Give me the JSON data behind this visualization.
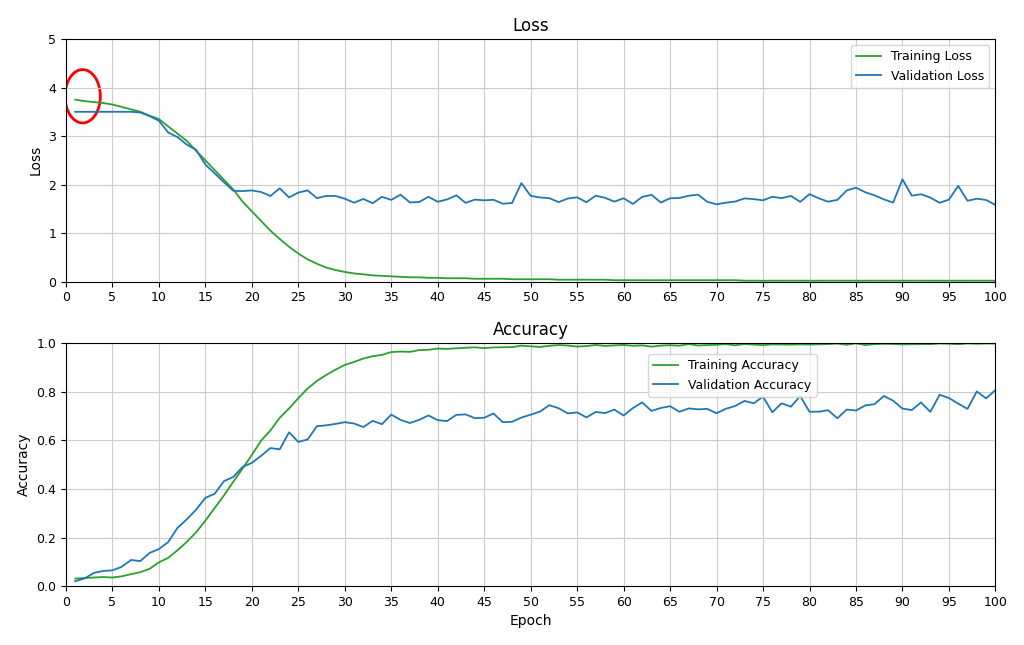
{
  "epochs": 100,
  "loss_ylim": [
    0,
    5
  ],
  "loss_yticks": [
    0,
    1,
    2,
    3,
    4,
    5
  ],
  "acc_ylim": [
    0.0,
    1.0
  ],
  "acc_yticks": [
    0.0,
    0.2,
    0.4,
    0.6,
    0.8,
    1.0
  ],
  "xticks": [
    0,
    5,
    10,
    15,
    20,
    25,
    30,
    35,
    40,
    45,
    50,
    55,
    60,
    65,
    70,
    75,
    80,
    85,
    90,
    95,
    100
  ],
  "loss_title": "Loss",
  "acc_title": "Accuracy",
  "xlabel": "Epoch",
  "loss_ylabel": "Loss",
  "acc_ylabel": "Accuracy",
  "train_loss_color": "#2ca02c",
  "val_loss_color": "#1f77b4",
  "train_acc_color": "#2ca02c",
  "val_acc_color": "#1f77b4",
  "train_loss_label": "Training Loss",
  "val_loss_label": "Validation Loss",
  "train_acc_label": "Training Accuracy",
  "val_acc_label": "Validation Accuracy",
  "circle_color": "red",
  "background_color": "#ffffff",
  "grid_color": "#cccccc",
  "legend_fontsize": 9,
  "title_fontsize": 12,
  "label_fontsize": 10,
  "tick_fontsize": 9,
  "line_width": 1.3,
  "seed": 42
}
